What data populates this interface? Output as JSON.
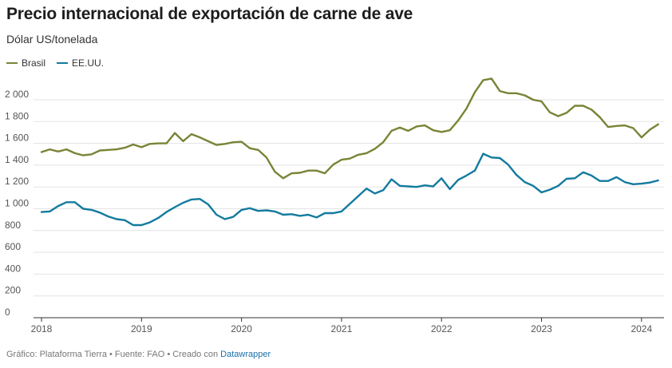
{
  "header": {
    "title": "Precio internacional de exportación de carne de ave",
    "subtitle": "Dólar US/tonelada"
  },
  "footer": {
    "prefix": "Gráfico: Plataforma Tierra • Fuente: FAO • Creado con ",
    "link": "Datawrapper"
  },
  "chart_data": {
    "type": "line",
    "title": "Precio internacional de exportación de carne de ave",
    "ylabel": "Dólar US/tonelada",
    "ylim": [
      0,
      2000
    ],
    "y_ticks": [
      0,
      200,
      400,
      600,
      800,
      1000,
      1200,
      1400,
      1600,
      1800,
      2000
    ],
    "y_tick_labels": [
      "0",
      "200",
      "400",
      "600",
      "800",
      "1 000",
      "1 200",
      "1 400",
      "1 600",
      "1 800",
      "2 000"
    ],
    "x_ticks": [
      "2018",
      "2019",
      "2020",
      "2021",
      "2022",
      "2023",
      "2024"
    ],
    "legend_position": "top-left",
    "grid": true,
    "x": [
      "2018-01",
      "2018-02",
      "2018-03",
      "2018-04",
      "2018-05",
      "2018-06",
      "2018-07",
      "2018-08",
      "2018-09",
      "2018-10",
      "2018-11",
      "2018-12",
      "2019-01",
      "2019-02",
      "2019-03",
      "2019-04",
      "2019-05",
      "2019-06",
      "2019-07",
      "2019-08",
      "2019-09",
      "2019-10",
      "2019-11",
      "2019-12",
      "2020-01",
      "2020-02",
      "2020-03",
      "2020-04",
      "2020-05",
      "2020-06",
      "2020-07",
      "2020-08",
      "2020-09",
      "2020-10",
      "2020-11",
      "2020-12",
      "2021-01",
      "2021-02",
      "2021-03",
      "2021-04",
      "2021-05",
      "2021-06",
      "2021-07",
      "2021-08",
      "2021-09",
      "2021-10",
      "2021-11",
      "2021-12",
      "2022-01",
      "2022-02",
      "2022-03",
      "2022-04",
      "2022-05",
      "2022-06",
      "2022-07",
      "2022-08",
      "2022-09",
      "2022-10",
      "2022-11",
      "2022-12",
      "2023-01",
      "2023-02",
      "2023-03",
      "2023-04",
      "2023-05",
      "2023-06",
      "2023-07",
      "2023-08",
      "2023-09",
      "2023-10",
      "2023-11",
      "2023-12",
      "2024-01",
      "2024-02",
      "2024-03"
    ],
    "series": [
      {
        "name": "Brasil",
        "color": "#7a8336",
        "values": [
          1520,
          1545,
          1525,
          1545,
          1510,
          1490,
          1500,
          1535,
          1540,
          1545,
          1560,
          1590,
          1565,
          1595,
          1600,
          1600,
          1695,
          1620,
          1685,
          1655,
          1620,
          1585,
          1595,
          1610,
          1615,
          1555,
          1540,
          1470,
          1340,
          1280,
          1325,
          1330,
          1350,
          1350,
          1325,
          1405,
          1450,
          1460,
          1495,
          1510,
          1550,
          1610,
          1715,
          1745,
          1715,
          1755,
          1765,
          1720,
          1705,
          1720,
          1810,
          1920,
          2070,
          2180,
          2195,
          2080,
          2060,
          2060,
          2040,
          2000,
          1985,
          1885,
          1850,
          1880,
          1945,
          1945,
          1910,
          1840,
          1750,
          1760,
          1765,
          1740,
          1655,
          1725,
          1775
        ]
      },
      {
        "name": "EE.UU.",
        "color": "#137a9e",
        "values": [
          970,
          975,
          1025,
          1060,
          1060,
          1000,
          990,
          965,
          930,
          905,
          895,
          850,
          850,
          875,
          915,
          970,
          1015,
          1055,
          1085,
          1090,
          1040,
          945,
          905,
          925,
          990,
          1005,
          980,
          985,
          975,
          945,
          950,
          935,
          945,
          920,
          960,
          960,
          975,
          1045,
          1115,
          1185,
          1140,
          1170,
          1270,
          1210,
          1205,
          1200,
          1215,
          1205,
          1280,
          1180,
          1265,
          1305,
          1350,
          1505,
          1470,
          1465,
          1405,
          1310,
          1245,
          1210,
          1150,
          1175,
          1210,
          1275,
          1280,
          1335,
          1305,
          1255,
          1255,
          1290,
          1245,
          1225,
          1230,
          1240,
          1260
        ]
      }
    ]
  }
}
